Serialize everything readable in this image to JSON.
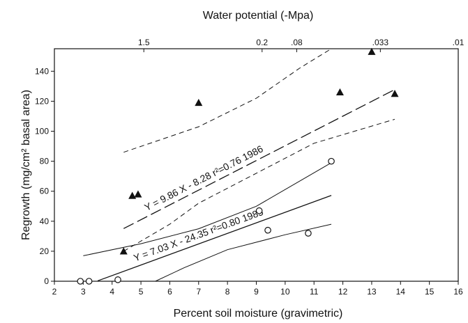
{
  "chart_data": {
    "type": "scatter",
    "title": "",
    "xlabel": "Percent soil moisture (gravimetric)",
    "ylabel": "Regrowth (mg/cm² basal area)",
    "top_xlabel": "Water potential (-Mpa)",
    "xlim": [
      2,
      16
    ],
    "ylim": [
      0,
      155
    ],
    "x_ticks": [
      2,
      3,
      4,
      5,
      6,
      7,
      8,
      9,
      10,
      11,
      12,
      13,
      14,
      15,
      16
    ],
    "y_ticks": [
      0,
      20,
      40,
      60,
      80,
      100,
      120,
      140
    ],
    "top_ticks": [
      {
        "label": "1.5",
        "x": 5.1
      },
      {
        "label": "0.2",
        "x": 9.2
      },
      {
        "label": ".08",
        "x": 10.4
      },
      {
        "label": ".033",
        "x": 13.3
      },
      {
        "label": ".01",
        "x": 16.0
      }
    ],
    "grid": false,
    "series": [
      {
        "name": "1986",
        "marker": "filled-triangle",
        "points": [
          {
            "x": 4.4,
            "y": 20
          },
          {
            "x": 4.7,
            "y": 57
          },
          {
            "x": 4.9,
            "y": 58
          },
          {
            "x": 7.0,
            "y": 119
          },
          {
            "x": 11.9,
            "y": 126
          },
          {
            "x": 13.0,
            "y": 153
          },
          {
            "x": 13.8,
            "y": 125
          }
        ],
        "fit": {
          "equation": "Y = 9.86 X - 8.28",
          "r2": "r²=0.76",
          "year_label": "1986",
          "x_range": [
            4.4,
            13.8
          ],
          "slope": 9.86,
          "intercept": -8.28
        },
        "band_upper": [
          {
            "x": 4.4,
            "y": 86
          },
          {
            "x": 7.0,
            "y": 103
          },
          {
            "x": 9.0,
            "y": 122
          },
          {
            "x": 10.5,
            "y": 142
          },
          {
            "x": 11.6,
            "y": 160
          }
        ],
        "band_lower": [
          {
            "x": 4.4,
            "y": 20
          },
          {
            "x": 6.0,
            "y": 38
          },
          {
            "x": 7.0,
            "y": 52
          },
          {
            "x": 9.0,
            "y": 72
          },
          {
            "x": 11.0,
            "y": 92
          },
          {
            "x": 13.8,
            "y": 108
          }
        ]
      },
      {
        "name": "1985",
        "marker": "open-circle",
        "points": [
          {
            "x": 2.9,
            "y": 0
          },
          {
            "x": 3.2,
            "y": 0
          },
          {
            "x": 4.2,
            "y": 1
          },
          {
            "x": 9.1,
            "y": 47
          },
          {
            "x": 9.4,
            "y": 34
          },
          {
            "x": 10.8,
            "y": 32
          },
          {
            "x": 11.6,
            "y": 80
          }
        ],
        "fit": {
          "equation": "Y = 7.03 X - 24.35",
          "r2": "r²=0.80",
          "year_label": "1985",
          "x_range": [
            3.5,
            11.6
          ],
          "slope": 7.03,
          "intercept": -24.35
        },
        "band_upper": [
          {
            "x": 3.0,
            "y": 17
          },
          {
            "x": 5.0,
            "y": 25
          },
          {
            "x": 7.0,
            "y": 35
          },
          {
            "x": 9.0,
            "y": 50
          },
          {
            "x": 11.6,
            "y": 79
          }
        ],
        "band_lower": [
          {
            "x": 5.5,
            "y": 0
          },
          {
            "x": 6.5,
            "y": 9
          },
          {
            "x": 8.0,
            "y": 21
          },
          {
            "x": 10.0,
            "y": 31
          },
          {
            "x": 11.6,
            "y": 38
          }
        ]
      }
    ]
  }
}
